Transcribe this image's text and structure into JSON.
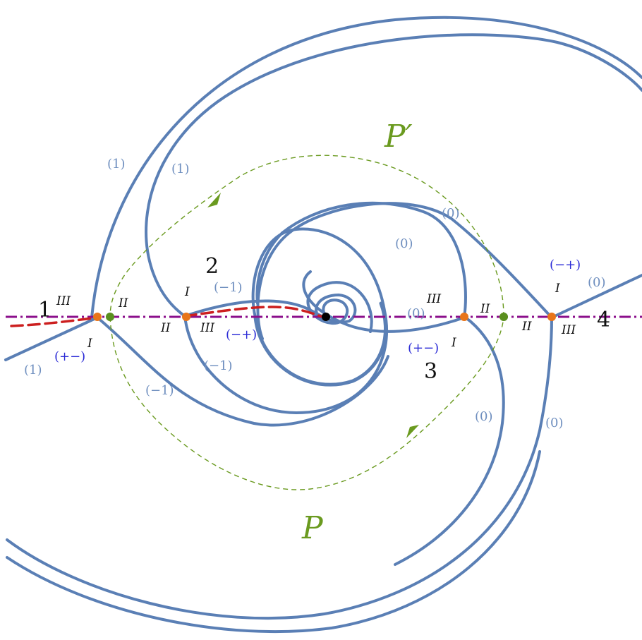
{
  "contours": {
    "lower": "P",
    "upper": "P′"
  },
  "regions": {
    "r1": "1",
    "r2": "2",
    "r3": "3",
    "r4": "4"
  },
  "sheet_labels": {
    "g1": "(1)",
    "g2": "(1)",
    "g3": "(1)",
    "g4": "(−1)",
    "g5": "(−1)",
    "g6": "(−1)",
    "g7": "(0)",
    "g8": "(0)",
    "g9": "(0)",
    "g10": "(0)",
    "g11": "(0)",
    "g12": "(0)",
    "b1": "(+−)",
    "b2": "(−+)",
    "b3": "(+−)",
    "b4": "(−+)"
  },
  "quadrant_labels": {
    "p1_III": "III",
    "p1_II": "II",
    "p1_I": "I",
    "p2_I": "I",
    "p2_II": "II",
    "p2_III": "III",
    "p3_III": "III",
    "p3_II": "II",
    "p3_I": "I",
    "p4_I": "I",
    "p4_II": "II",
    "p4_III": "III"
  },
  "colors": {
    "stokes_lines": "#5a7fb5",
    "real_axis": "#8b0f8b",
    "branch_cut": "#cc1f1f",
    "contour": "#6a9a1f",
    "branch_points": "#e8751a",
    "sheet_labels": "#6f8fbf",
    "sign_labels": "#2b2bd6"
  }
}
